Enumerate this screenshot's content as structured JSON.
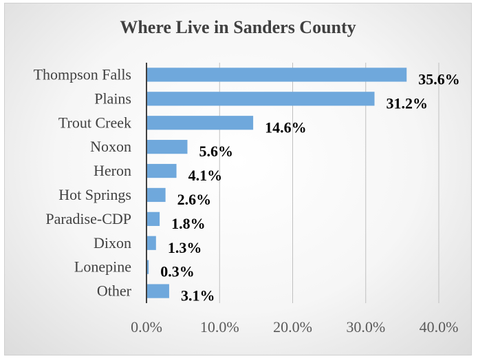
{
  "chart_data": {
    "type": "bar",
    "orientation": "horizontal",
    "title": "Where Live in Sanders County",
    "categories": [
      "Thompson Falls",
      "Plains",
      "Trout Creek",
      "Noxon",
      "Heron",
      "Hot Springs",
      "Paradise-CDP",
      "Dixon",
      "Lonepine",
      "Other"
    ],
    "values": [
      35.6,
      31.2,
      14.6,
      5.6,
      4.1,
      2.6,
      1.8,
      1.3,
      0.3,
      3.1
    ],
    "data_labels": [
      "35.6%",
      "31.2%",
      "14.6%",
      "5.6%",
      "4.1%",
      "2.6%",
      "1.8%",
      "1.3%",
      "0.3%",
      "3.1%"
    ],
    "xlim": [
      0,
      40
    ],
    "ticks": [
      0,
      10,
      20,
      30,
      40
    ],
    "tick_labels": [
      "0.0%",
      "10.0%",
      "20.0%",
      "30.0%",
      "40.0%"
    ],
    "xlabel": "",
    "ylabel": "",
    "grid": true,
    "legend": "none",
    "bar_color": "#6fa8dc",
    "gridline_color": "#bfbfbf",
    "axis_color": "#404040"
  }
}
